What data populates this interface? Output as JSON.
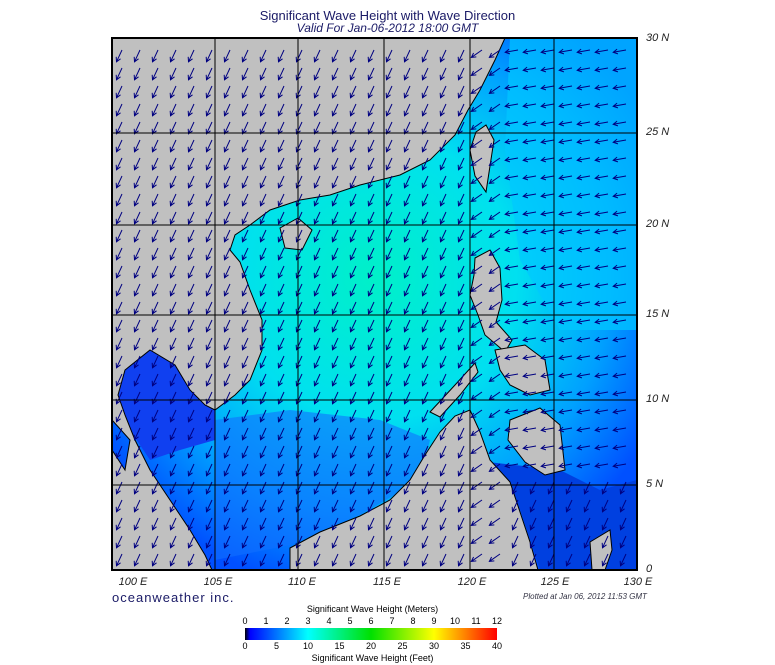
{
  "title": "Significant Wave Height with Wave Direction",
  "subtitle": "Valid For Jan-06-2012 18:00 GMT",
  "lon_labels": [
    "100 E",
    "105 E",
    "110 E",
    "115 E",
    "120 E",
    "125 E",
    "130 E"
  ],
  "lat_labels": [
    "30 N",
    "25 N",
    "20 N",
    "15 N",
    "10 N",
    "5 N",
    "0"
  ],
  "logo": "oceanweather inc.",
  "plotted": "Plotted at Jan 06, 2012 11:53 GMT",
  "colorbar": {
    "meters_title": "Significant Wave Height (Meters)",
    "meters_ticks": [
      "0",
      "1",
      "2",
      "3",
      "4",
      "5",
      "6",
      "7",
      "8",
      "9",
      "10",
      "11",
      "12"
    ],
    "feet_title": "Significant Wave Height (Feet)",
    "feet_ticks": [
      "0",
      "5",
      "10",
      "15",
      "20",
      "25",
      "30",
      "35",
      "40"
    ],
    "colors": [
      "#000000",
      "#0000ff",
      "#00a0ff",
      "#00ffff",
      "#00ff90",
      "#00e000",
      "#a0ff00",
      "#ffff00",
      "#ffa000",
      "#ff0000"
    ]
  },
  "colors": {
    "land": "#c0c0c0",
    "arrow": "#000080",
    "grid": "#000000",
    "text": "#1a1a66"
  }
}
